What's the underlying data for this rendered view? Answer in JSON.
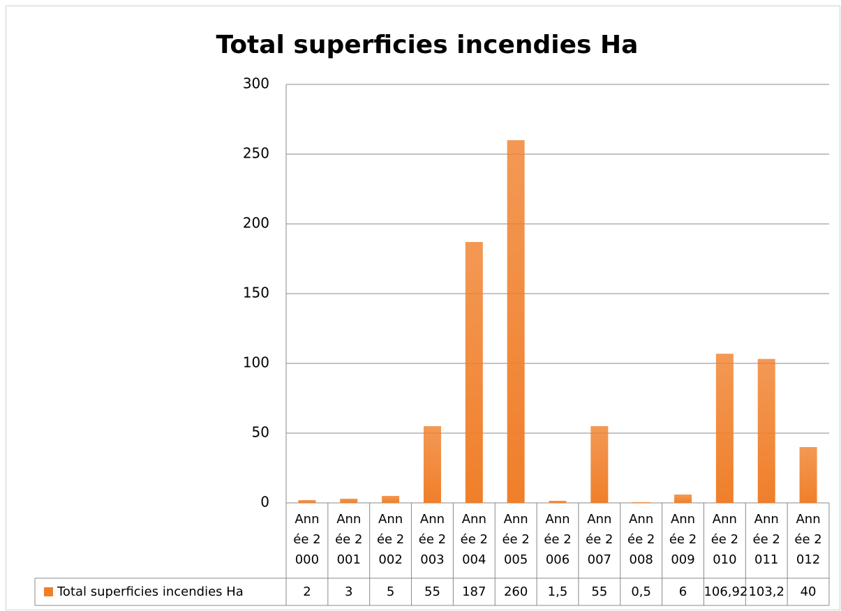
{
  "chart_data": {
    "type": "bar",
    "title": "Total superficies incendies Ha",
    "categories": [
      "Année 2000",
      "Année 2001",
      "Année 2002",
      "Année 2003",
      "Année 2004",
      "Année 2005",
      "Année 2006",
      "Année 2007",
      "Année 2008",
      "Année 2009",
      "Année 2010",
      "Année 2011",
      "Année 2012"
    ],
    "series": [
      {
        "name": "Total superficies incendies Ha",
        "color": "#f07f2a",
        "values": [
          2,
          3,
          5,
          55,
          187,
          260,
          1.5,
          55,
          0.5,
          6,
          106.92,
          103.2,
          40
        ],
        "value_labels": [
          "2",
          "3",
          "5",
          "55",
          "187",
          "260",
          "1,5",
          "55",
          "0,5",
          "6",
          "106,92",
          "103,2",
          "40"
        ]
      }
    ],
    "ylim": [
      0,
      300
    ],
    "yticks": [
      0,
      50,
      100,
      150,
      200,
      250,
      300
    ],
    "grid": true
  }
}
